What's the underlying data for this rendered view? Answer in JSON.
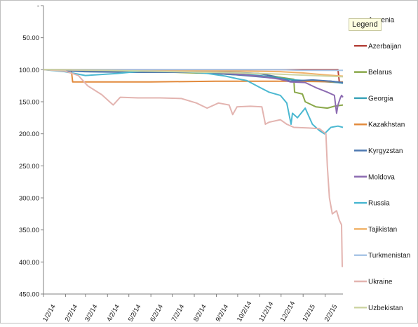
{
  "chart_data": {
    "type": "line",
    "title": "",
    "xlabel": "",
    "ylabel": "",
    "y_inverted": true,
    "ylim": [
      0,
      450
    ],
    "y_tick_labels": [
      "-",
      "50.00",
      "100.00",
      "150.00",
      "200.00",
      "250.00",
      "300.00",
      "350.00",
      "400.00",
      "450.00"
    ],
    "y_tick_values": [
      0,
      50,
      100,
      150,
      200,
      250,
      300,
      350,
      400,
      450
    ],
    "x_tick_labels": [
      "1/2/14",
      "2/2/14",
      "3/2/14",
      "4/2/14",
      "5/2/14",
      "6/2/14",
      "7/2/14",
      "8/2/14",
      "9/2/14",
      "10/2/14",
      "11/2/14",
      "12/2/14",
      "1/2/15",
      "2/2/15"
    ],
    "x_tick_values": [
      "2014-01-02",
      "2014-02-02",
      "2014-03-02",
      "2014-04-02",
      "2014-05-02",
      "2014-06-02",
      "2014-07-02",
      "2014-08-02",
      "2014-09-02",
      "2014-10-02",
      "2014-11-02",
      "2014-12-02",
      "2015-01-02",
      "2015-02-02"
    ],
    "x_range": [
      "2014-01-02",
      "2015-02-27"
    ],
    "grid": false,
    "legend_title": "Legend",
    "legend_position": "right",
    "series": [
      {
        "name": "Armenia",
        "color": "#4a6fa5",
        "points": [
          [
            "2014-01-02",
            100
          ],
          [
            "2014-03-01",
            101
          ],
          [
            "2014-06-01",
            102
          ],
          [
            "2014-09-01",
            103
          ],
          [
            "2014-11-01",
            106
          ],
          [
            "2014-12-01",
            112
          ],
          [
            "2014-12-15",
            118
          ],
          [
            "2015-01-15",
            117
          ],
          [
            "2015-02-10",
            118
          ],
          [
            "2015-02-25",
            120
          ]
        ]
      },
      {
        "name": "Azerbaijan",
        "color": "#b5443c",
        "points": [
          [
            "2014-01-02",
            100
          ],
          [
            "2014-06-01",
            100
          ],
          [
            "2014-12-01",
            100
          ],
          [
            "2015-02-20",
            100
          ],
          [
            "2015-02-22",
            120
          ],
          [
            "2015-02-27",
            121
          ]
        ]
      },
      {
        "name": "Belarus",
        "color": "#8aa84a",
        "points": [
          [
            "2014-01-02",
            100
          ],
          [
            "2014-03-01",
            101
          ],
          [
            "2014-06-01",
            103
          ],
          [
            "2014-09-01",
            106
          ],
          [
            "2014-11-01",
            110
          ],
          [
            "2014-12-01",
            112
          ],
          [
            "2014-12-20",
            115
          ],
          [
            "2014-12-21",
            135
          ],
          [
            "2015-01-01",
            138
          ],
          [
            "2015-01-05",
            150
          ],
          [
            "2015-01-20",
            158
          ],
          [
            "2015-02-05",
            160
          ],
          [
            "2015-02-15",
            157
          ],
          [
            "2015-02-27",
            155
          ]
        ]
      },
      {
        "name": "Georgia",
        "color": "#3aa3b8",
        "points": [
          [
            "2014-01-02",
            100
          ],
          [
            "2014-06-01",
            101
          ],
          [
            "2014-09-01",
            104
          ],
          [
            "2014-11-01",
            109
          ],
          [
            "2014-12-01",
            113
          ],
          [
            "2014-12-20",
            116
          ],
          [
            "2015-01-20",
            118
          ],
          [
            "2015-02-20",
            120
          ],
          [
            "2015-02-27",
            121
          ]
        ]
      },
      {
        "name": "Kazakhstan",
        "color": "#e28a3c",
        "points": [
          [
            "2014-01-02",
            100
          ],
          [
            "2014-02-10",
            100
          ],
          [
            "2014-02-12",
            119
          ],
          [
            "2014-06-01",
            119
          ],
          [
            "2014-09-01",
            118
          ],
          [
            "2014-11-01",
            118
          ],
          [
            "2014-12-15",
            118
          ],
          [
            "2015-02-27",
            119
          ]
        ]
      },
      {
        "name": "Kyrgyzstan",
        "color": "#4d78b0",
        "points": [
          [
            "2014-01-02",
            100
          ],
          [
            "2014-03-01",
            103
          ],
          [
            "2014-05-01",
            104
          ],
          [
            "2014-08-01",
            104
          ],
          [
            "2014-10-01",
            108
          ],
          [
            "2014-12-01",
            114
          ],
          [
            "2014-12-15",
            118
          ],
          [
            "2015-01-15",
            116
          ],
          [
            "2015-02-10",
            118
          ],
          [
            "2015-02-27",
            120
          ]
        ]
      },
      {
        "name": "Moldova",
        "color": "#8c6bb1",
        "points": [
          [
            "2014-01-02",
            100
          ],
          [
            "2014-06-01",
            102
          ],
          [
            "2014-09-01",
            104
          ],
          [
            "2014-11-01",
            110
          ],
          [
            "2014-12-01",
            115
          ],
          [
            "2014-12-15",
            119
          ],
          [
            "2015-01-05",
            120
          ],
          [
            "2015-01-20",
            128
          ],
          [
            "2015-02-05",
            135
          ],
          [
            "2015-02-15",
            140
          ],
          [
            "2015-02-18",
            168
          ],
          [
            "2015-02-20",
            155
          ],
          [
            "2015-02-23",
            145
          ],
          [
            "2015-02-25",
            140
          ],
          [
            "2015-02-27",
            143
          ]
        ]
      },
      {
        "name": "Russia",
        "color": "#4bb8d1",
        "points": [
          [
            "2014-01-02",
            100
          ],
          [
            "2014-02-01",
            103
          ],
          [
            "2014-03-02",
            109
          ],
          [
            "2014-04-15",
            106
          ],
          [
            "2014-06-01",
            101
          ],
          [
            "2014-07-15",
            103
          ],
          [
            "2014-08-15",
            105
          ],
          [
            "2014-09-15",
            110
          ],
          [
            "2014-10-01",
            114
          ],
          [
            "2014-10-15",
            117
          ],
          [
            "2014-11-01",
            127
          ],
          [
            "2014-11-15",
            135
          ],
          [
            "2014-12-01",
            140
          ],
          [
            "2014-12-10",
            152
          ],
          [
            "2014-12-16",
            185
          ],
          [
            "2014-12-18",
            168
          ],
          [
            "2014-12-25",
            175
          ],
          [
            "2015-01-05",
            160
          ],
          [
            "2015-01-15",
            185
          ],
          [
            "2015-01-25",
            195
          ],
          [
            "2015-02-01",
            200
          ],
          [
            "2015-02-10",
            190
          ],
          [
            "2015-02-20",
            188
          ],
          [
            "2015-02-27",
            190
          ]
        ]
      },
      {
        "name": "Tajikistan",
        "color": "#f0b26a",
        "points": [
          [
            "2014-01-02",
            100
          ],
          [
            "2014-06-01",
            101
          ],
          [
            "2014-10-01",
            102
          ],
          [
            "2014-12-01",
            103
          ],
          [
            "2015-01-01",
            105
          ],
          [
            "2015-02-01",
            108
          ],
          [
            "2015-02-27",
            110
          ]
        ]
      },
      {
        "name": "Turkmenistan",
        "color": "#a9c6e6",
        "points": [
          [
            "2014-01-02",
            100
          ],
          [
            "2014-06-01",
            100
          ],
          [
            "2014-12-01",
            100
          ],
          [
            "2015-01-01",
            101
          ],
          [
            "2015-02-27",
            101
          ]
        ]
      },
      {
        "name": "Ukraine",
        "color": "#e3b4b0",
        "points": [
          [
            "2014-01-02",
            100
          ],
          [
            "2014-02-01",
            102
          ],
          [
            "2014-02-20",
            109
          ],
          [
            "2014-03-05",
            125
          ],
          [
            "2014-03-25",
            139
          ],
          [
            "2014-04-10",
            155
          ],
          [
            "2014-04-20",
            143
          ],
          [
            "2014-05-15",
            144
          ],
          [
            "2014-06-15",
            144
          ],
          [
            "2014-07-15",
            145
          ],
          [
            "2014-08-05",
            152
          ],
          [
            "2014-08-20",
            160
          ],
          [
            "2014-09-05",
            152
          ],
          [
            "2014-09-20",
            155
          ],
          [
            "2014-09-25",
            170
          ],
          [
            "2014-10-01",
            158
          ],
          [
            "2014-10-20",
            157
          ],
          [
            "2014-11-05",
            158
          ],
          [
            "2014-11-10",
            185
          ],
          [
            "2014-11-15",
            182
          ],
          [
            "2014-12-01",
            178
          ],
          [
            "2014-12-10",
            185
          ],
          [
            "2014-12-20",
            190
          ],
          [
            "2015-01-10",
            191
          ],
          [
            "2015-01-25",
            192
          ],
          [
            "2015-02-03",
            200
          ],
          [
            "2015-02-05",
            250
          ],
          [
            "2015-02-08",
            300
          ],
          [
            "2015-02-12",
            325
          ],
          [
            "2015-02-18",
            320
          ],
          [
            "2015-02-22",
            335
          ],
          [
            "2015-02-25",
            342
          ],
          [
            "2015-02-26",
            408
          ]
        ]
      },
      {
        "name": "Uzbekistan",
        "color": "#cdd5a3",
        "points": [
          [
            "2014-01-02",
            100
          ],
          [
            "2014-04-01",
            101
          ],
          [
            "2014-07-01",
            103
          ],
          [
            "2014-10-01",
            105
          ],
          [
            "2014-12-01",
            107
          ],
          [
            "2015-01-15",
            109
          ],
          [
            "2015-02-27",
            111
          ]
        ]
      }
    ]
  }
}
